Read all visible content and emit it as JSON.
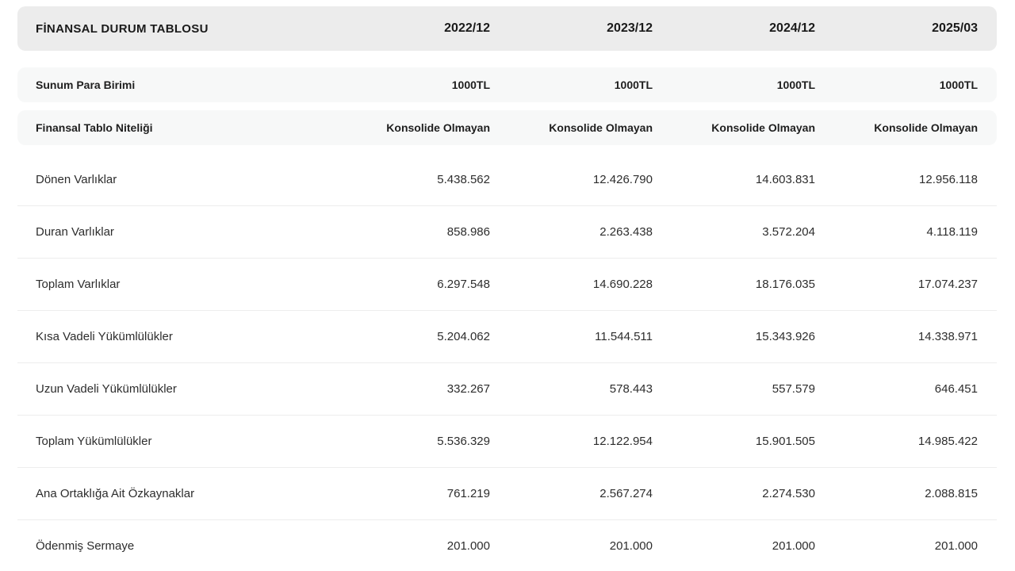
{
  "table": {
    "header": {
      "title": "FİNANSAL DURUM TABLOSU",
      "periods": [
        "2022/12",
        "2023/12",
        "2024/12",
        "2025/03"
      ]
    },
    "meta_rows": [
      {
        "label": "Sunum Para Birimi",
        "values": [
          "1000TL",
          "1000TL",
          "1000TL",
          "1000TL"
        ]
      },
      {
        "label": "Finansal Tablo Niteliği",
        "values": [
          "Konsolide Olmayan",
          "Konsolide Olmayan",
          "Konsolide Olmayan",
          "Konsolide Olmayan"
        ]
      }
    ],
    "data_rows": [
      {
        "label": "Dönen Varlıklar",
        "values": [
          "5.438.562",
          "12.426.790",
          "14.603.831",
          "12.956.118"
        ]
      },
      {
        "label": "Duran Varlıklar",
        "values": [
          "858.986",
          "2.263.438",
          "3.572.204",
          "4.118.119"
        ]
      },
      {
        "label": "Toplam Varlıklar",
        "values": [
          "6.297.548",
          "14.690.228",
          "18.176.035",
          "17.074.237"
        ]
      },
      {
        "label": "Kısa Vadeli Yükümlülükler",
        "values": [
          "5.204.062",
          "11.544.511",
          "15.343.926",
          "14.338.971"
        ]
      },
      {
        "label": "Uzun Vadeli Yükümlülükler",
        "values": [
          "332.267",
          "578.443",
          "557.579",
          "646.451"
        ]
      },
      {
        "label": "Toplam Yükümlülükler",
        "values": [
          "5.536.329",
          "12.122.954",
          "15.901.505",
          "14.985.422"
        ]
      },
      {
        "label": "Ana Ortaklığa Ait Özkaynaklar",
        "values": [
          "761.219",
          "2.567.274",
          "2.274.530",
          "2.088.815"
        ]
      },
      {
        "label": "Ödenmiş Sermaye",
        "values": [
          "201.000",
          "201.000",
          "201.000",
          "201.000"
        ]
      }
    ],
    "colors": {
      "header_bg": "#ececec",
      "meta_bg": "#f7f8f8",
      "separator": "#ededed",
      "text_bold": "#1a1a1a",
      "text_regular": "#2d2d2d",
      "page_bg": "#ffffff"
    }
  }
}
